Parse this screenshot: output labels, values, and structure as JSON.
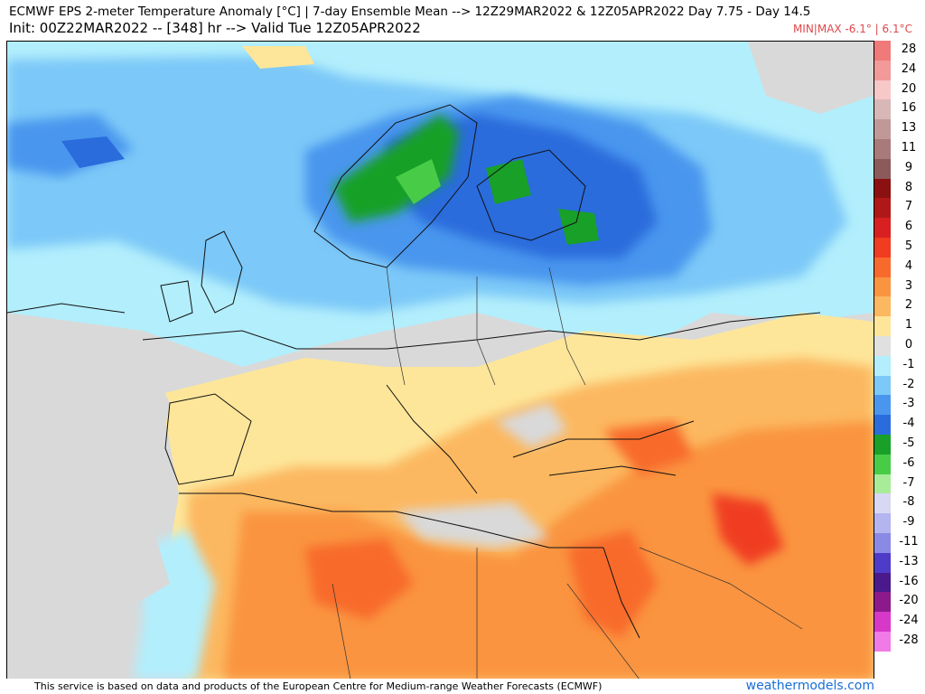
{
  "header": {
    "line1": "ECMWF EPS 2-meter Temperature Anomaly [°C] | 7-day Ensemble Mean --> 12Z29MAR2022 & 12Z05APR2022   Day 7.75 - Day 14.5",
    "line2": "Init: 00Z22MAR2022 -- [348] hr --> Valid Tue 12Z05APR2022",
    "minmax": "MIN|MAX -6.1° | 6.1°C"
  },
  "colorbar": {
    "entries": [
      {
        "label": "28",
        "color": "#f07a7a"
      },
      {
        "label": "24",
        "color": "#f29999"
      },
      {
        "label": "20",
        "color": "#f7c8c8"
      },
      {
        "label": "16",
        "color": "#d8b7b7"
      },
      {
        "label": "13",
        "color": "#c09898"
      },
      {
        "label": "11",
        "color": "#a87a7a"
      },
      {
        "label": "9",
        "color": "#8c5a5a"
      },
      {
        "label": "8",
        "color": "#8c1010"
      },
      {
        "label": "7",
        "color": "#b01818"
      },
      {
        "label": "6",
        "color": "#d82020"
      },
      {
        "label": "5",
        "color": "#f03c20"
      },
      {
        "label": "4",
        "color": "#f86a2c"
      },
      {
        "label": "3",
        "color": "#fa9440"
      },
      {
        "label": "2",
        "color": "#fcb860"
      },
      {
        "label": "1",
        "color": "#fde69a"
      },
      {
        "label": "0",
        "color": "#e0e0e0"
      },
      {
        "label": "-1",
        "color": "#b2eefc"
      },
      {
        "label": "-2",
        "color": "#7cc8f8"
      },
      {
        "label": "-3",
        "color": "#4a96ee"
      },
      {
        "label": "-4",
        "color": "#2a6cdc"
      },
      {
        "label": "-5",
        "color": "#18a028"
      },
      {
        "label": "-6",
        "color": "#48cc48"
      },
      {
        "label": "-7",
        "color": "#a8ec98"
      },
      {
        "label": "-8",
        "color": "#d8d8f4"
      },
      {
        "label": "-9",
        "color": "#b4b4f0"
      },
      {
        "label": "-11",
        "color": "#8a8ae6"
      },
      {
        "label": "-13",
        "color": "#4e3cc8"
      },
      {
        "label": "-16",
        "color": "#4a1a8c"
      },
      {
        "label": "-20",
        "color": "#8c1a8c"
      },
      {
        "label": "-24",
        "color": "#d838c8"
      },
      {
        "label": "-28",
        "color": "#f07ae6"
      }
    ]
  },
  "footer": {
    "credit": "This service is based on data and products of the European Centre for Medium-range Weather Forecasts (ECMWF)",
    "site": "weathermodels.com"
  }
}
